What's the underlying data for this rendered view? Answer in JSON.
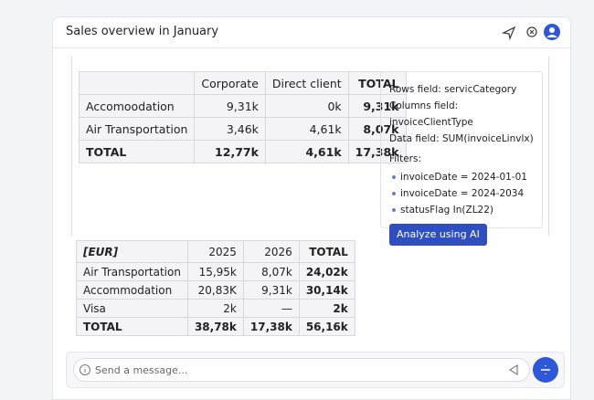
{
  "header": {
    "title": "Sales overview in January"
  },
  "pivot_table": {
    "header": [
      "Corporate",
      "Direct client",
      "TOTAL"
    ],
    "rows": [
      [
        "Accomoodation",
        "9,31k",
        "0k",
        "9,31k"
      ],
      [
        "Air Transportation",
        "3,46k",
        "4,61k",
        "8,07k"
      ],
      [
        "TOTAL",
        "12,77k",
        "4,61k",
        "17,38k"
      ]
    ]
  },
  "settings": {
    "fields": [
      {
        "label": "Rows field:",
        "value": "servicCategory"
      },
      {
        "label": "Columns field:",
        "value": "invoiceClientType"
      },
      {
        "label": "Data field:",
        "value": "SUM(invoiceLinvlx)"
      }
    ],
    "filters_title": "Filters:",
    "filters": [
      "invoiceDate = 2024-01-01",
      "invoiceDate = 2024-2034",
      "statusFlag In(ZL22)"
    ],
    "button": "Analyze using AI"
  },
  "eur_table": {
    "header": [
      "[EUR]",
      "2025",
      "2026",
      "TOTAL"
    ],
    "rows": [
      [
        "Air Transportation",
        "15,95k",
        "8,07k",
        "24,02k"
      ],
      [
        "Accommodation",
        "20,83K",
        "9,31k",
        "30,14k"
      ],
      [
        "Visa",
        "2k",
        "—",
        "2k"
      ],
      [
        "TOTAL",
        "38,78k",
        "17,38k",
        "56,16k"
      ]
    ]
  },
  "input": {
    "placeholder": "Send a message..."
  }
}
